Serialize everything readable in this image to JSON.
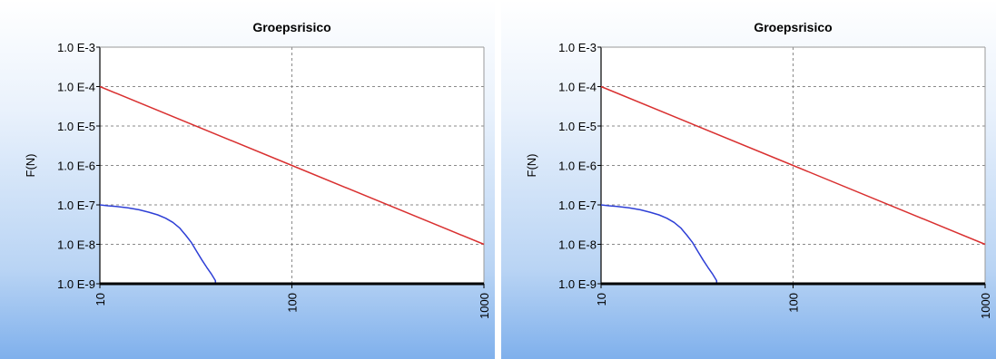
{
  "chart_data": [
    {
      "type": "line",
      "title": "Groepsrisico",
      "xlabel": "",
      "ylabel": "F(N)",
      "x_scale": "log",
      "y_scale": "log",
      "xlim": [
        10,
        1000
      ],
      "ylim": [
        1e-09,
        0.001
      ],
      "x_ticks": [
        "10",
        "100",
        "1000"
      ],
      "y_ticks": [
        "1.0 E-3",
        "1.0 E-4",
        "1.0 E-5",
        "1.0 E-6",
        "1.0 E-7",
        "1.0 E-8",
        "1.0 E-9"
      ],
      "grid": true,
      "series": [
        {
          "color": "#d93030",
          "points": [
            [
              10,
              0.0001
            ],
            [
              100,
              1e-06
            ],
            [
              1000,
              1e-08
            ]
          ]
        },
        {
          "color": "#2e3fd6",
          "points": [
            [
              10,
              1e-07
            ],
            [
              11,
              9.5e-08
            ],
            [
              12,
              9.2e-08
            ],
            [
              14,
              8.4e-08
            ],
            [
              16,
              7.5e-08
            ],
            [
              18,
              6.5e-08
            ],
            [
              20,
              5.6e-08
            ],
            [
              22,
              4.6e-08
            ],
            [
              24,
              3.6e-08
            ],
            [
              26,
              2.6e-08
            ],
            [
              27,
              2.1e-08
            ],
            [
              28,
              1.7e-08
            ],
            [
              30,
              1.1e-08
            ],
            [
              32,
              6.5e-09
            ],
            [
              34,
              4e-09
            ],
            [
              36,
              2.6e-09
            ],
            [
              38,
              1.8e-09
            ],
            [
              40,
              1.2e-09
            ],
            [
              40,
              1e-09
            ]
          ]
        }
      ]
    },
    {
      "type": "line",
      "title": "Groepsrisico",
      "xlabel": "",
      "ylabel": "F(N)",
      "x_scale": "log",
      "y_scale": "log",
      "xlim": [
        10,
        1000
      ],
      "ylim": [
        1e-09,
        0.001
      ],
      "x_ticks": [
        "10",
        "100",
        "1000"
      ],
      "y_ticks": [
        "1.0 E-3",
        "1.0 E-4",
        "1.0 E-5",
        "1.0 E-6",
        "1.0 E-7",
        "1.0 E-8",
        "1.0 E-9"
      ],
      "grid": true,
      "series": [
        {
          "color": "#d93030",
          "points": [
            [
              10,
              0.0001
            ],
            [
              100,
              1e-06
            ],
            [
              1000,
              1e-08
            ]
          ]
        },
        {
          "color": "#2e3fd6",
          "points": [
            [
              10,
              1e-07
            ],
            [
              11,
              9.5e-08
            ],
            [
              12,
              9.2e-08
            ],
            [
              14,
              8.4e-08
            ],
            [
              16,
              7.5e-08
            ],
            [
              18,
              6.5e-08
            ],
            [
              20,
              5.6e-08
            ],
            [
              22,
              4.6e-08
            ],
            [
              24,
              3.6e-08
            ],
            [
              26,
              2.6e-08
            ],
            [
              27,
              2.1e-08
            ],
            [
              28,
              1.7e-08
            ],
            [
              30,
              1.1e-08
            ],
            [
              32,
              6.5e-09
            ],
            [
              34,
              4e-09
            ],
            [
              36,
              2.6e-09
            ],
            [
              38,
              1.8e-09
            ],
            [
              40,
              1.2e-09
            ],
            [
              40,
              1e-09
            ]
          ]
        }
      ]
    }
  ]
}
